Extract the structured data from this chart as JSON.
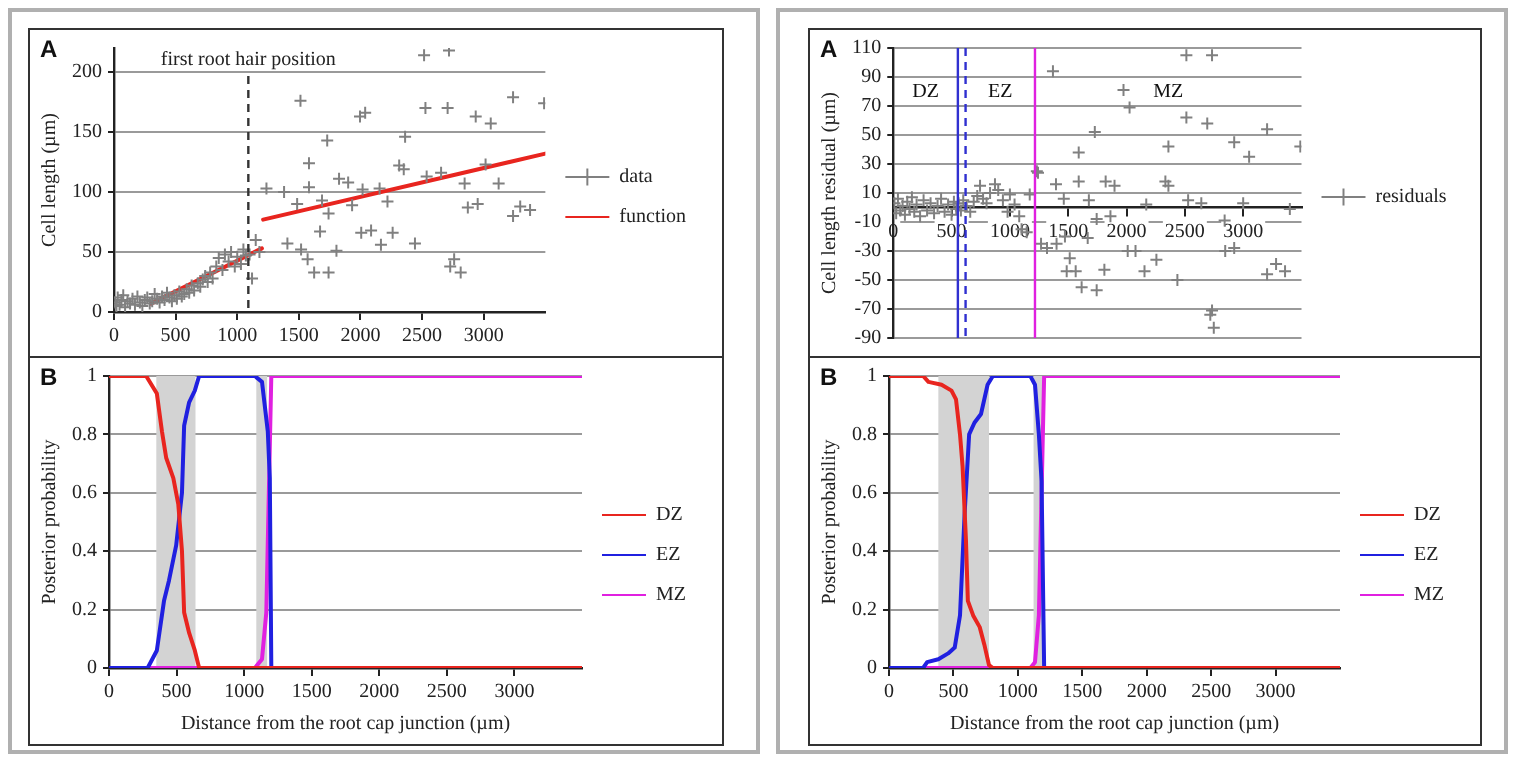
{
  "chart_data": [
    {
      "type": "scatter",
      "annotations": [
        "A"
      ],
      "ylabel": "Cell length (µm)",
      "xlim": [
        0,
        3500
      ],
      "xticks": [
        0,
        500,
        1000,
        1500,
        2000,
        2500,
        3000
      ],
      "ylim": [
        0,
        220
      ],
      "yticks": [
        0,
        50,
        100,
        150,
        200
      ],
      "grid": "y",
      "legend": "right",
      "ref_lines": [
        {
          "axis": "x",
          "value": 1090,
          "label": "first root hair position",
          "color": "#333333",
          "line_style": "dashed"
        }
      ],
      "series": [
        {
          "name": "data",
          "type": "scatter",
          "marker": "cross",
          "color": "#808080",
          "x": [
            10,
            20,
            30,
            45,
            60,
            75,
            90,
            110,
            130,
            150,
            170,
            190,
            210,
            230,
            250,
            270,
            290,
            310,
            330,
            350,
            370,
            390,
            410,
            430,
            450,
            470,
            490,
            510,
            530,
            550,
            570,
            590,
            610,
            630,
            650,
            680,
            700,
            720,
            740,
            760,
            780,
            800,
            830,
            850,
            880,
            900,
            930,
            950,
            980,
            1000,
            1030,
            1050,
            1070,
            1100,
            1120,
            1150,
            1180,
            1237,
            1380,
            1407,
            1486,
            1518,
            1513,
            1582,
            1571,
            1582,
            1624,
            1672,
            1688,
            1730,
            1741,
            1741,
            1805,
            1826,
            1900,
            1932,
            1996,
            2006,
            2038,
            2017,
            2086,
            2155,
            2166,
            2219,
            2261,
            2314,
            2351,
            2362,
            2442,
            2516,
            2527,
            2537,
            2654,
            2718,
            2707,
            2728,
            2760,
            2813,
            2845,
            2871,
            2935,
            2951,
            3015,
            3057,
            3121,
            3238,
            3238,
            3296,
            3376,
            3490
          ],
          "values": [
            8,
            5,
            12,
            6,
            10,
            14,
            4,
            9,
            7,
            11,
            6,
            13,
            8,
            5,
            10,
            12,
            7,
            9,
            15,
            11,
            8,
            13,
            10,
            16,
            12,
            9,
            14,
            11,
            17,
            13,
            15,
            19,
            16,
            22,
            18,
            24,
            21,
            27,
            30,
            25,
            33,
            28,
            38,
            45,
            35,
            48,
            42,
            50,
            38,
            46,
            40,
            52,
            47,
            48,
            28,
            60,
            50,
            103,
            100,
            57,
            90,
            52,
            176,
            124,
            44,
            104,
            33,
            67,
            93,
            143,
            82,
            33,
            51,
            111,
            108,
            89,
            163,
            66,
            166,
            102,
            68,
            103,
            56,
            92,
            66,
            122,
            119,
            146,
            57,
            214,
            170,
            113,
            116,
            218,
            170,
            38,
            44,
            33,
            107,
            87,
            163,
            90,
            123,
            157,
            107,
            80,
            179,
            88,
            85,
            174
          ]
        },
        {
          "name": "function",
          "type": "line",
          "marker": "none",
          "color": "#e8251f",
          "x": [
            300,
            1200,
            1205,
            1210,
            3500
          ],
          "values": [
            7,
            53,
            null,
            77,
            132
          ]
        }
      ]
    },
    {
      "type": "line",
      "annotations": [
        "B"
      ],
      "ylabel": "Posterior probability",
      "xlabel": "Distance from the root cap junction (µm)",
      "xlim": [
        0,
        3500
      ],
      "xticks": [
        0,
        500,
        1000,
        1500,
        2000,
        2500,
        3000
      ],
      "ylim": [
        0,
        1
      ],
      "yticks": [
        0,
        0.2,
        0.4,
        0.6,
        0.8,
        1
      ],
      "grid": "y",
      "legend": "right",
      "bands": [
        {
          "axis": "x",
          "from": 350,
          "to": 640,
          "color": "#d3d3d3"
        },
        {
          "axis": "x",
          "from": 1090,
          "to": 1170,
          "color": "#d3d3d3"
        }
      ],
      "series": [
        {
          "name": "DZ",
          "color": "#e8251f",
          "x": [
            0,
            275,
            354,
            392,
            423,
            476,
            513,
            540,
            556,
            593,
            635,
            667,
            3500
          ],
          "values": [
            1,
            1,
            0.94,
            0.81,
            0.72,
            0.65,
            0.56,
            0.4,
            0.19,
            0.12,
            0.06,
            0,
            0
          ]
        },
        {
          "name": "EZ",
          "color": "#2020e0",
          "x": [
            0,
            286,
            354,
            407,
            444,
            497,
            540,
            556,
            593,
            635,
            667,
            1079,
            1132,
            1175,
            1190,
            1201,
            3500
          ],
          "values": [
            0,
            0,
            0.06,
            0.23,
            0.3,
            0.42,
            0.6,
            0.83,
            0.91,
            0.95,
            1,
            1,
            0.98,
            0.81,
            0.65,
            0,
            0
          ]
        },
        {
          "name": "MZ",
          "color": "#e020e0",
          "x": [
            0,
            1079,
            1132,
            1164,
            1201,
            3500
          ],
          "values": [
            0,
            0,
            0.03,
            0.19,
            1,
            1
          ]
        }
      ]
    },
    {
      "type": "scatter",
      "annotations": [
        "A",
        "DZ",
        "EZ",
        "MZ"
      ],
      "ylabel": "Cell length residual (µm)",
      "xlim": [
        0,
        3500
      ],
      "xticks": [
        0,
        500,
        1000,
        1500,
        2000,
        2500,
        3000
      ],
      "ylim": [
        -90,
        110
      ],
      "yticks": [
        -90,
        -70,
        -50,
        -30,
        -10,
        10,
        30,
        50,
        70,
        90,
        110
      ],
      "grid": "y",
      "legend": "right",
      "ref_lines": [
        {
          "axis": "x",
          "value": 554,
          "color": "#3030d0",
          "line_style": "solid"
        },
        {
          "axis": "x",
          "value": 620,
          "color": "#3030d0",
          "line_style": "dashed"
        },
        {
          "axis": "x",
          "value": 1215,
          "color": "#e020e0",
          "line_style": "solid"
        }
      ],
      "series": [
        {
          "name": "residuals",
          "marker": "cross",
          "color": "#808080",
          "x": [
            10,
            25,
            40,
            60,
            80,
            100,
            120,
            140,
            160,
            180,
            200,
            230,
            260,
            290,
            320,
            350,
            380,
            410,
            440,
            470,
            500,
            520,
            540,
            560,
            580,
            600,
            630,
            660,
            690,
            720,
            744,
            770,
            800,
            830,
            872,
            900,
            940,
            980,
            1000,
            1040,
            1080,
            1100,
            1144,
            1170,
            1231,
            1241,
            1267,
            1318,
            1369,
            1395,
            1400,
            1462,
            1472,
            1513,
            1487,
            1564,
            1590,
            1590,
            1615,
            1667,
            1677,
            1728,
            1744,
            1744,
            1810,
            1821,
            1862,
            1897,
            1974,
            2026,
            2010,
            2077,
            2169,
            2154,
            2256,
            2333,
            2359,
            2359,
            2436,
            2513,
            2513,
            2528,
            2641,
            2733,
            2692,
            2718,
            2733,
            2748,
            2841,
            2846,
            2923,
            2923,
            3000,
            3051,
            3205,
            3205,
            3282,
            3359,
            3400,
            3490
          ],
          "values": [
            3,
            -4,
            6,
            -2,
            1,
            -5,
            4,
            -1,
            7,
            -3,
            2,
            -6,
            5,
            -2,
            3,
            -4,
            1,
            6,
            -3,
            2,
            -5,
            4,
            -1,
            3,
            -2,
            5,
            1,
            -3,
            4,
            8,
            15,
            6,
            3,
            10,
            16,
            12,
            5,
            -3,
            9,
            2,
            -6,
            -15,
            -17,
            9,
            25,
            24,
            -25,
            -28,
            94,
            16,
            -25,
            6,
            -20,
            -35,
            -44,
            -44,
            38,
            18,
            -55,
            -21,
            5,
            52,
            -8,
            -57,
            -43,
            18,
            -6,
            15,
            81,
            69,
            -30,
            -30,
            2,
            -44,
            -36,
            18,
            15,
            42,
            -50,
            105,
            62,
            5,
            3,
            105,
            58,
            -74,
            -71,
            -83,
            -9,
            -30,
            -28,
            45,
            3,
            35,
            54,
            -46,
            -39,
            -44,
            -1,
            42
          ]
        }
      ]
    },
    {
      "type": "line",
      "annotations": [
        "B"
      ],
      "ylabel": "Posterior probability",
      "xlabel": "Distance from the root cap junction (µm)",
      "xlim": [
        0,
        3500
      ],
      "xticks": [
        0,
        500,
        1000,
        1500,
        2000,
        2500,
        3000
      ],
      "ylim": [
        0,
        1
      ],
      "yticks": [
        0,
        0.2,
        0.4,
        0.6,
        0.8,
        1
      ],
      "grid": "y",
      "legend": "right",
      "bands": [
        {
          "axis": "x",
          "from": 383,
          "to": 776,
          "color": "#d3d3d3"
        },
        {
          "axis": "x",
          "from": 1122,
          "to": 1199,
          "color": "#d3d3d3"
        }
      ],
      "series": [
        {
          "name": "DZ",
          "color": "#e8251f",
          "x": [
            0,
            265,
            306,
            408,
            485,
            520,
            551,
            571,
            597,
            612,
            653,
            704,
            740,
            776,
            806,
            3500
          ],
          "values": [
            1,
            1,
            0.98,
            0.97,
            0.95,
            0.92,
            0.8,
            0.69,
            0.44,
            0.23,
            0.18,
            0.14,
            0.08,
            0.01,
            0,
            0
          ]
        },
        {
          "name": "EZ",
          "color": "#2020e0",
          "x": [
            0,
            265,
            296,
            383,
            459,
            510,
            551,
            587,
            622,
            663,
            714,
            765,
            806,
            1097,
            1133,
            1163,
            1184,
            1204,
            3500
          ],
          "values": [
            0,
            0,
            0.02,
            0.03,
            0.05,
            0.07,
            0.18,
            0.53,
            0.8,
            0.84,
            0.87,
            0.97,
            1,
            1,
            0.97,
            0.8,
            0.64,
            0,
            0
          ]
        },
        {
          "name": "MZ",
          "color": "#e020e0",
          "x": [
            0,
            1097,
            1133,
            1163,
            1204,
            3500
          ],
          "values": [
            0,
            0,
            0.02,
            0.18,
            1,
            1
          ]
        }
      ]
    }
  ]
}
